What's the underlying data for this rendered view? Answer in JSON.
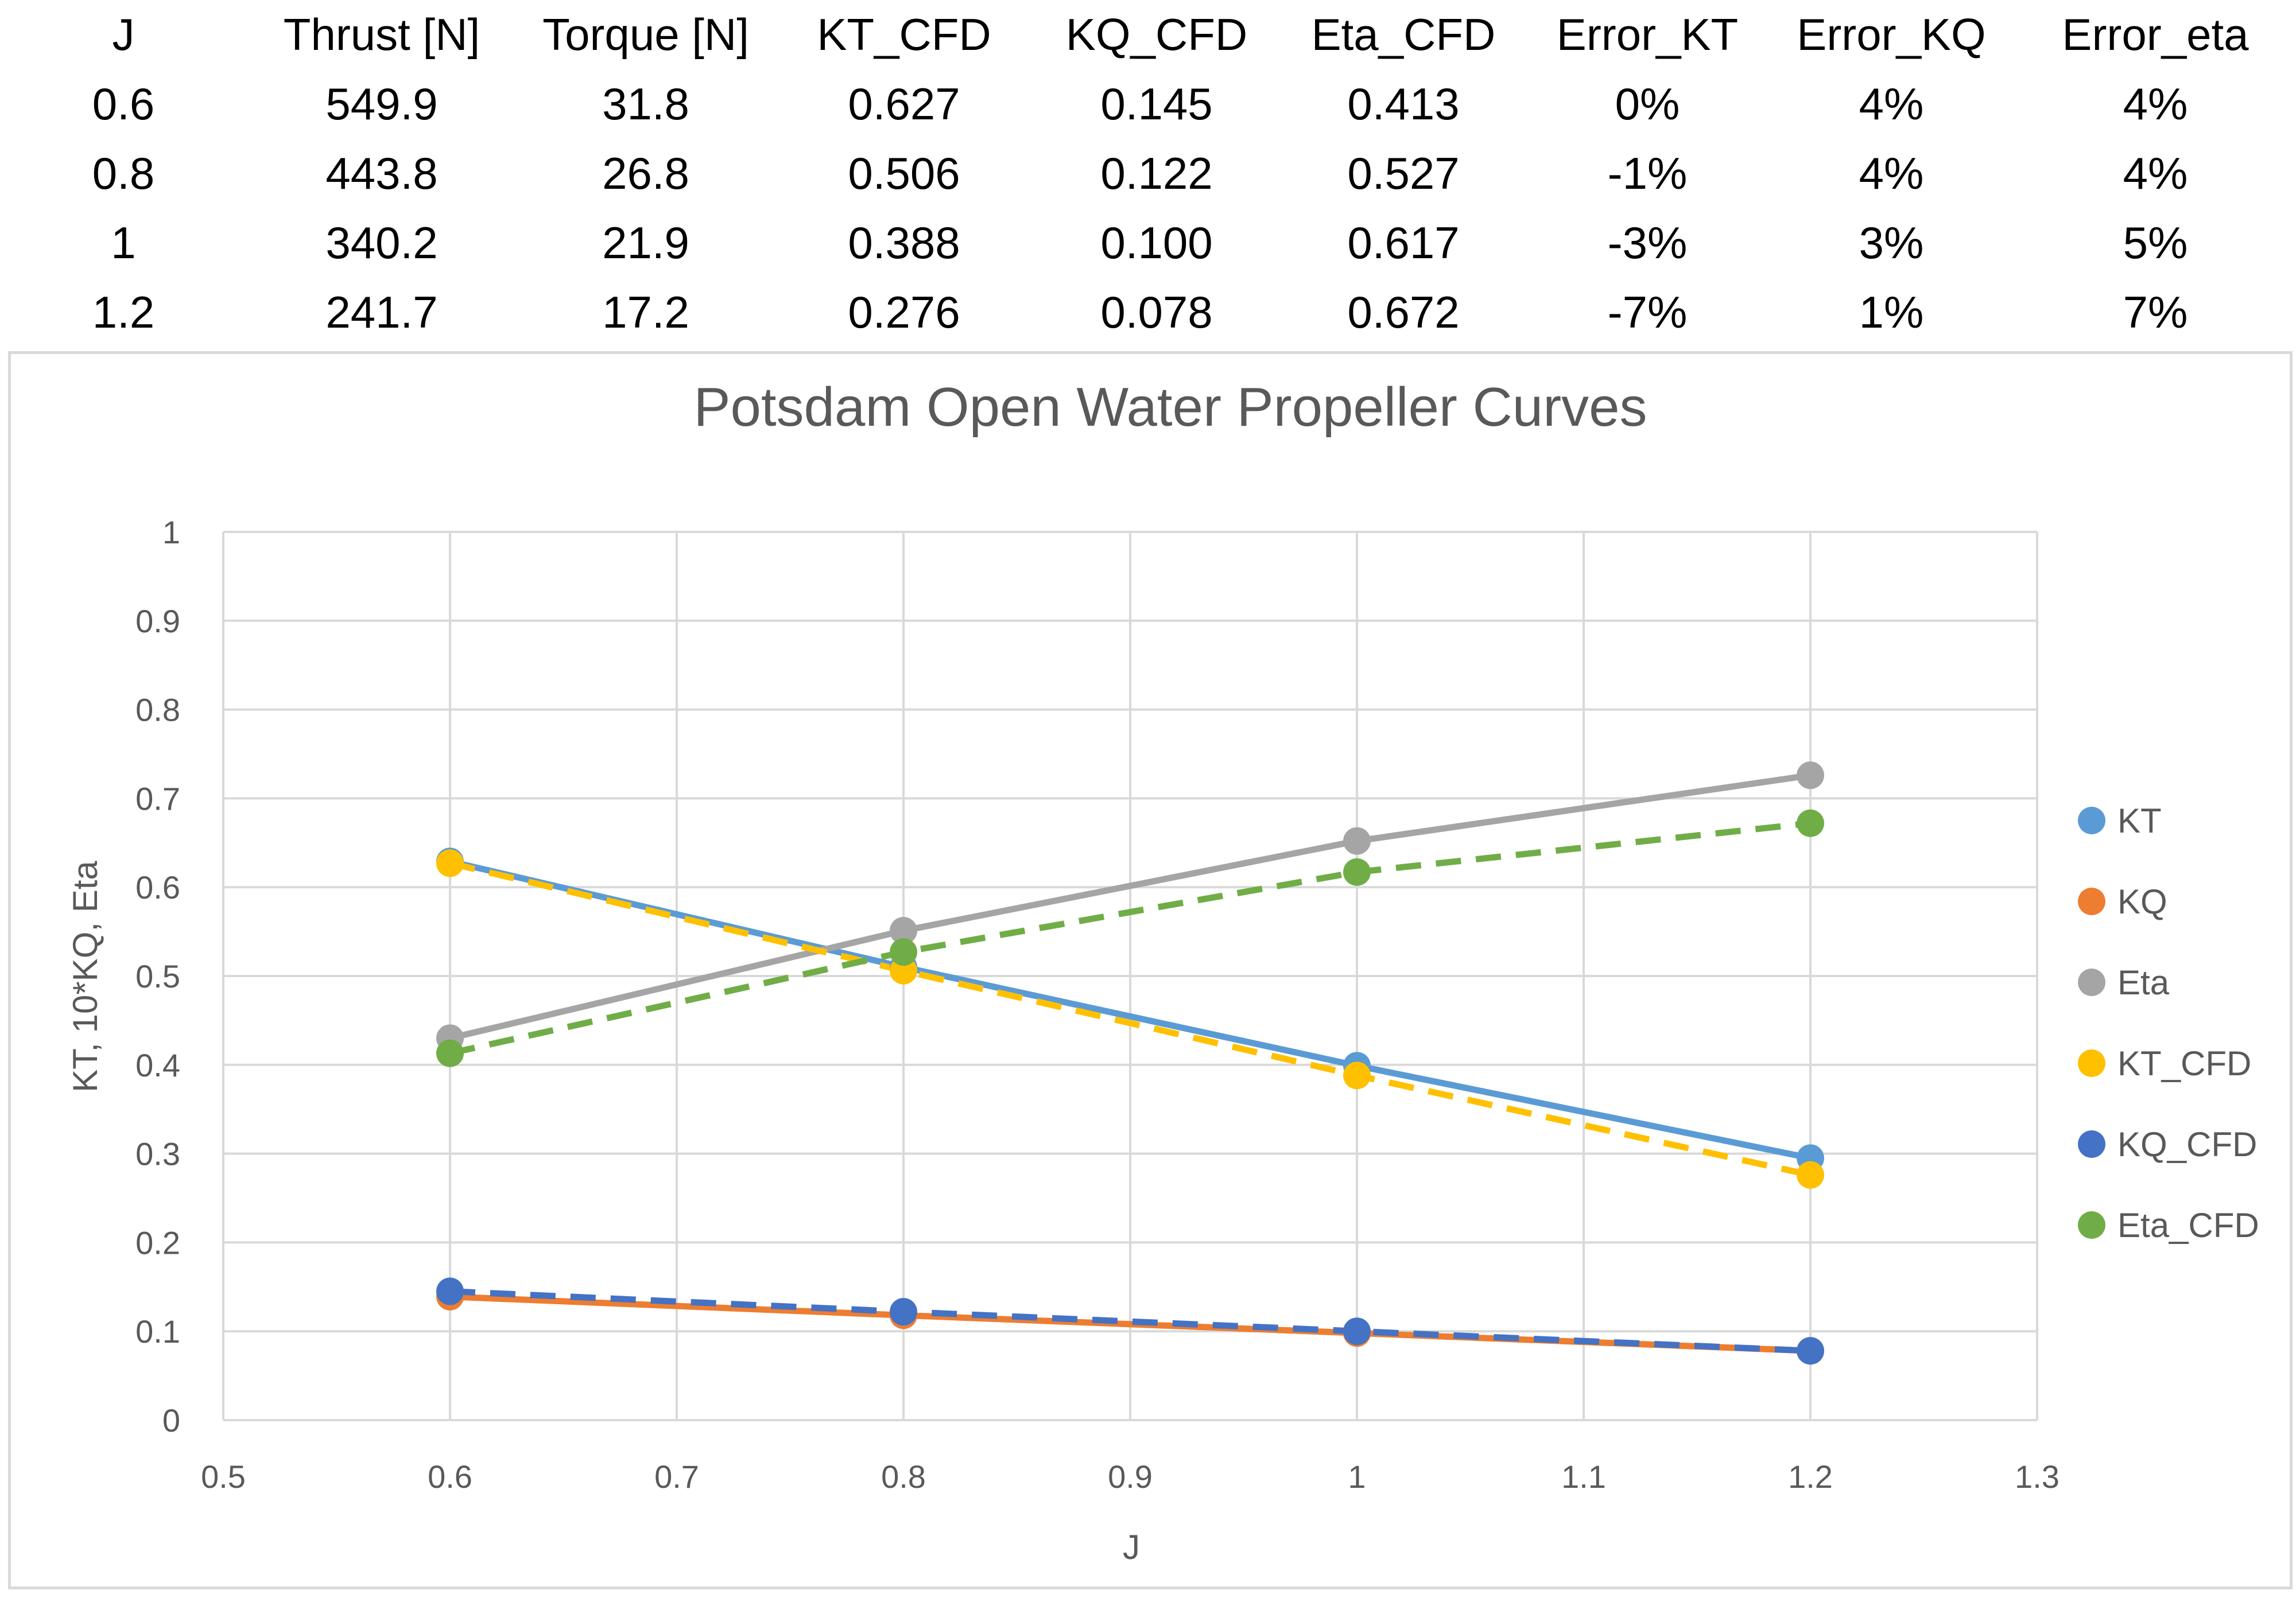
{
  "table": {
    "headers": [
      "J",
      "Thrust [N]",
      "Torque [N]",
      "KT_CFD",
      "KQ_CFD",
      "Eta_CFD",
      "Error_KT",
      "Error_KQ",
      "Error_eta"
    ],
    "rows": [
      [
        "0.6",
        "549.9",
        "31.8",
        "0.627",
        "0.145",
        "0.413",
        "0%",
        "4%",
        "4%"
      ],
      [
        "0.8",
        "443.8",
        "26.8",
        "0.506",
        "0.122",
        "0.527",
        "-1%",
        "4%",
        "4%"
      ],
      [
        "1",
        "340.2",
        "21.9",
        "0.388",
        "0.100",
        "0.617",
        "-3%",
        "3%",
        "5%"
      ],
      [
        "1.2",
        "241.7",
        "17.2",
        "0.276",
        "0.078",
        "0.672",
        "-7%",
        "1%",
        "7%"
      ]
    ]
  },
  "chart_data": {
    "type": "line",
    "title": "Potsdam Open Water Propeller Curves",
    "xlabel": "J",
    "ylabel": "KT, 10*KQ, Eta",
    "xlim": [
      0.5,
      1.3
    ],
    "ylim": [
      0,
      1
    ],
    "xticks": [
      "0.5",
      "0.6",
      "0.7",
      "0.8",
      "0.9",
      "1",
      "1.1",
      "1.2",
      "1.3"
    ],
    "yticks": [
      "0",
      "0.1",
      "0.2",
      "0.3",
      "0.4",
      "0.5",
      "0.6",
      "0.7",
      "0.8",
      "0.9",
      "1"
    ],
    "grid": true,
    "legend_position": "right",
    "x": [
      0.6,
      0.8,
      1.0,
      1.2
    ],
    "series": [
      {
        "name": "KT",
        "values": [
          0.629,
          0.51,
          0.399,
          0.295
        ],
        "color": "#5b9bd5",
        "dashed": false
      },
      {
        "name": "KQ",
        "values": [
          0.139,
          0.118,
          0.098,
          0.078
        ],
        "color": "#ed7d31",
        "dashed": false
      },
      {
        "name": "Eta",
        "values": [
          0.43,
          0.551,
          0.652,
          0.726
        ],
        "color": "#a5a5a5",
        "dashed": false
      },
      {
        "name": "KT_CFD",
        "values": [
          0.627,
          0.506,
          0.388,
          0.276
        ],
        "color": "#ffc000",
        "dashed": true
      },
      {
        "name": "KQ_CFD",
        "values": [
          0.145,
          0.122,
          0.1,
          0.078
        ],
        "color": "#4472c4",
        "dashed": true
      },
      {
        "name": "Eta_CFD",
        "values": [
          0.413,
          0.527,
          0.617,
          0.672
        ],
        "color": "#70ad47",
        "dashed": true
      }
    ]
  }
}
